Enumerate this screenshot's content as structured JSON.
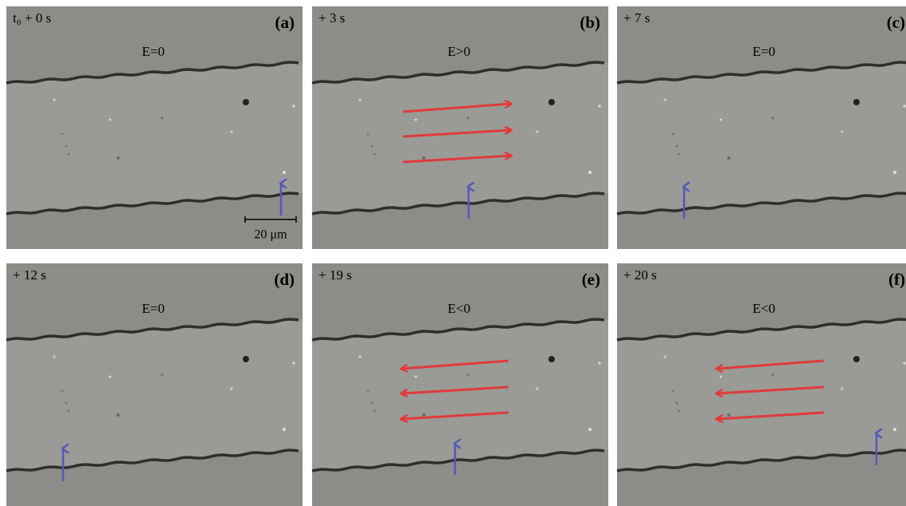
{
  "panels": [
    {
      "time": "t₀ + 0 s",
      "label": "(a)",
      "field": "E=0"
    },
    {
      "time": "+ 3 s",
      "label": "(b)",
      "field": "E>0"
    },
    {
      "time": "+ 7 s",
      "label": "(c)",
      "field": "E=0"
    },
    {
      "time": "+ 12 s",
      "label": "(d)",
      "field": "E=0"
    },
    {
      "time": "+ 19 s",
      "label": "(e)",
      "field": "E<0"
    },
    {
      "time": "+ 20 s",
      "label": "(f)",
      "field": "E<0"
    }
  ],
  "scale_bar": "20 μm"
}
